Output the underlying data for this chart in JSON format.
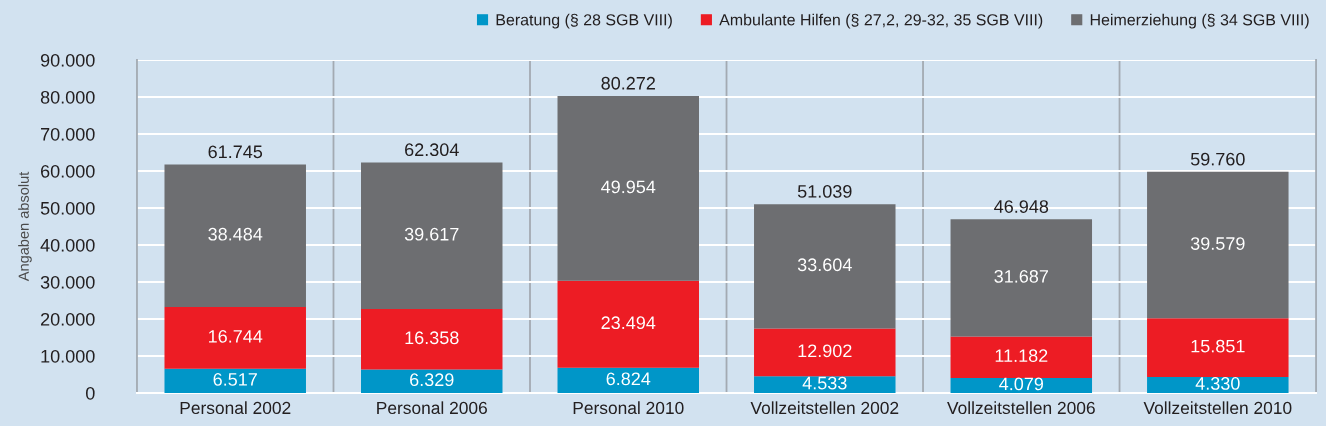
{
  "chart_data": {
    "type": "bar",
    "stacked": true,
    "categories": [
      "Personal 2002",
      "Personal 2006",
      "Personal 2010",
      "Vollzeitstellen 2002",
      "Vollzeitstellen 2006",
      "Vollzeitstellen 2010"
    ],
    "ylabel": "Angaben absolut",
    "ylim": [
      0,
      90000
    ],
    "yticks": [
      0,
      {
        "value": 10000,
        "label": "10.000"
      },
      {
        "value": 20000,
        "label": "20.000"
      },
      {
        "value": 30000,
        "label": "30.000"
      },
      {
        "value": 40000,
        "label": "40.000"
      },
      {
        "value": 50000,
        "label": "50.000"
      },
      {
        "value": 60000,
        "label": "60.000"
      },
      {
        "value": 70000,
        "label": "70.000"
      },
      {
        "value": 80000,
        "label": "80.000"
      },
      {
        "value": 90000,
        "label": "90.000"
      }
    ],
    "grid": true,
    "legend": "top right",
    "series": [
      {
        "name": "Beratung (§ 28 SGB VIII)",
        "color": "#0096c8",
        "values": [
          6517,
          6329,
          6824,
          4533,
          4079,
          4330
        ],
        "value_labels": [
          "6.517",
          "6.329",
          "6.824",
          "4.533",
          "4.079",
          "4.330"
        ]
      },
      {
        "name": "Ambulante Hilfen (§ 27,2, 29-32, 35 SGB VIII)",
        "color": "#ed1c24",
        "values": [
          16744,
          16358,
          23494,
          12902,
          11182,
          15851
        ],
        "value_labels": [
          "16.744",
          "16.358",
          "23.494",
          "12.902",
          "11.182",
          "15.851"
        ]
      },
      {
        "name": "Heimerziehung (§ 34 SGB VIII)",
        "color": "#6d6e71",
        "values": [
          38484,
          39617,
          49954,
          33604,
          31687,
          39579
        ],
        "value_labels": [
          "38.484",
          "39.617",
          "49.954",
          "33.604",
          "31.687",
          "39.579"
        ]
      }
    ],
    "totals": [
      "61.745",
      "62.304",
      "80.272",
      "51.039",
      "46.948",
      "59.760"
    ]
  }
}
